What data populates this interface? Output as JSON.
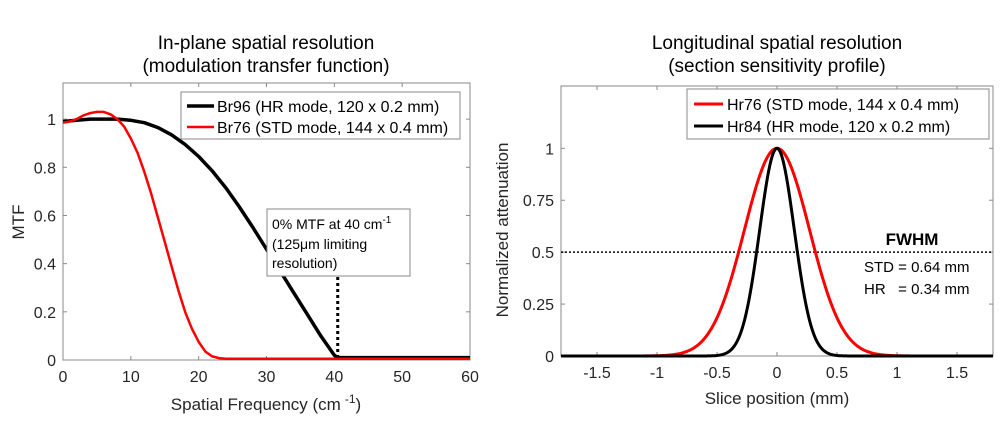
{
  "chart_data": [
    {
      "type": "line",
      "title": [
        "In-plane spatial resolution",
        "(modulation transfer function)"
      ],
      "xlabel": "Spatial Frequency (cm",
      "xlabel_sup": "-1",
      "xlabel_end": ")",
      "ylabel": "MTF",
      "xlim": [
        0,
        60
      ],
      "ylim": [
        0,
        1.15
      ],
      "xticks": [
        0,
        10,
        20,
        30,
        40,
        50,
        60
      ],
      "xtick_labels": [
        "0",
        "10",
        "20",
        "30",
        "40",
        "50",
        "60"
      ],
      "yticks": [
        0,
        0.2,
        0.4,
        0.6,
        0.8,
        1
      ],
      "ytick_labels": [
        "0",
        "0.2",
        "0.4",
        "0.6",
        "0.8",
        "1"
      ],
      "grid": false,
      "legend_position": "top-right",
      "series": [
        {
          "name": "Br96 (HR mode, 120 x 0.2 mm)",
          "color": "#000000",
          "x": [
            0,
            2,
            4,
            6,
            8,
            10,
            12,
            14,
            16,
            18,
            20,
            22,
            24,
            26,
            28,
            30,
            32,
            34,
            36,
            38,
            40,
            40.5,
            45,
            50,
            55,
            60
          ],
          "y": [
            0.99,
            0.995,
            1.0,
            1.0,
            1.0,
            0.995,
            0.985,
            0.965,
            0.935,
            0.895,
            0.845,
            0.785,
            0.715,
            0.635,
            0.55,
            0.46,
            0.37,
            0.28,
            0.19,
            0.1,
            0.02,
            0.01,
            0.01,
            0.01,
            0.01,
            0.01
          ]
        },
        {
          "name": "Br76 (STD mode, 144 x 0.4 mm)",
          "color": "#ff0000",
          "x": [
            0,
            1,
            2,
            3,
            4,
            5,
            6,
            7,
            8,
            9,
            10,
            11,
            12,
            13,
            14,
            15,
            16,
            17,
            18,
            19,
            20,
            21,
            22,
            23,
            24,
            25,
            30,
            40,
            50,
            60
          ],
          "y": [
            0.985,
            0.99,
            1.0,
            1.015,
            1.025,
            1.03,
            1.03,
            1.02,
            1.0,
            0.97,
            0.92,
            0.86,
            0.78,
            0.69,
            0.59,
            0.49,
            0.39,
            0.29,
            0.2,
            0.13,
            0.075,
            0.035,
            0.015,
            0.008,
            0.005,
            0.005,
            0.005,
            0.005,
            0.005,
            0.005
          ]
        }
      ],
      "annotation": {
        "lines": [
          "0% MTF at 40 cm",
          "(125μm limiting",
          "resolution)"
        ],
        "sup": "-1",
        "marker_x": 40.5
      }
    },
    {
      "type": "line",
      "title": [
        "Longitudinal spatial resolution",
        "(section sensitivity profile)"
      ],
      "xlabel": "Slice position (mm)",
      "ylabel": "Normalized attenuation",
      "xlim": [
        -1.8,
        1.8
      ],
      "ylim": [
        0,
        1.3
      ],
      "xticks": [
        -1.5,
        -1,
        -0.5,
        0,
        0.5,
        1,
        1.5
      ],
      "xtick_labels": [
        "-1.5",
        "-1",
        "-0.5",
        "0",
        "0.5",
        "1",
        "1.5"
      ],
      "yticks": [
        0,
        0.25,
        0.5,
        0.75,
        1
      ],
      "ytick_labels": [
        "0",
        "0.25",
        "0.5",
        "0.75",
        "1"
      ],
      "grid": false,
      "legend_position": "top-right",
      "series": [
        {
          "name": "Hr76 (STD mode, 144 x 0.4 mm)",
          "color": "#ff0000",
          "profile": "gaussian",
          "center": 0,
          "fwhm": 0.64,
          "peak": 1
        },
        {
          "name": "Hr84 (HR mode, 120 x 0.2 mm)",
          "color": "#000000",
          "profile": "gaussian",
          "center": 0,
          "fwhm": 0.34,
          "peak": 1
        }
      ],
      "reference_line": {
        "y": 0.5,
        "style": "dotted"
      },
      "annotation": {
        "heading": "FWHM",
        "lines": [
          "STD = 0.64 mm",
          "HR   = 0.34 mm"
        ]
      }
    }
  ]
}
